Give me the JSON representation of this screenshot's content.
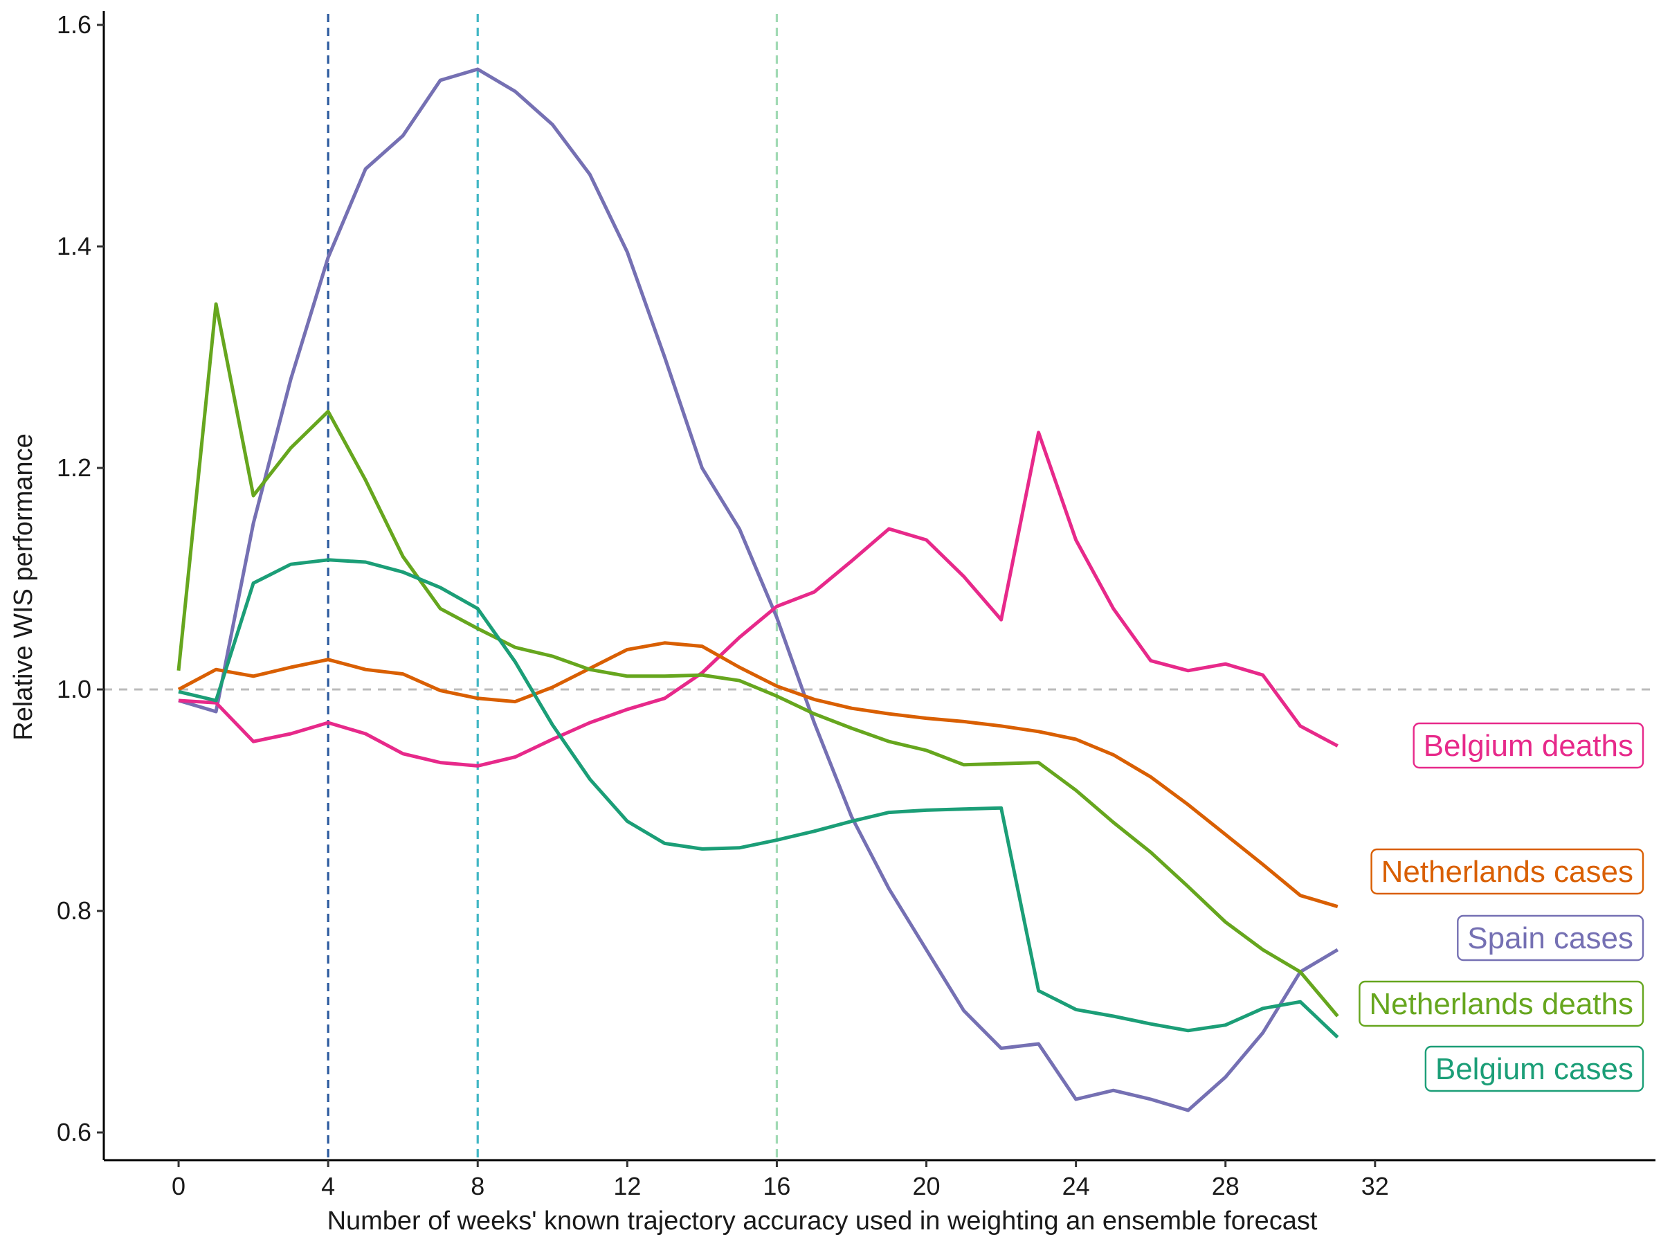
{
  "chart_data": {
    "type": "line",
    "title": "",
    "xlabel": "Number of weeks' known trajectory accuracy used in weighting an ensemble forecast",
    "ylabel": "Relative WIS performance",
    "xlim": [
      -2,
      39.5
    ],
    "ylim": [
      0.575,
      1.61
    ],
    "x_ticks": [
      0,
      4,
      8,
      12,
      16,
      20,
      24,
      28,
      32
    ],
    "y_ticks": [
      0.6,
      0.8,
      1.0,
      1.2,
      1.4,
      1.6
    ],
    "y_tick_labels": [
      "0.6",
      "0.8",
      "1.0",
      "1.2",
      "1.4",
      "1.6"
    ],
    "grid": false,
    "legend": "direct labels at right end of lines",
    "reference_lines": {
      "horizontal": {
        "y": 1.0,
        "color": "#bbbbbb",
        "style": "dashed"
      },
      "vertical": [
        {
          "x": 4,
          "color": "#2c5a9e",
          "style": "dashed"
        },
        {
          "x": 8,
          "color": "#41b6c4",
          "style": "dashed"
        },
        {
          "x": 16,
          "color": "#a1dab4",
          "style": "dashed"
        }
      ]
    },
    "x": [
      0,
      1,
      2,
      3,
      4,
      5,
      6,
      7,
      8,
      9,
      10,
      11,
      12,
      13,
      14,
      15,
      16,
      17,
      18,
      19,
      20,
      21,
      22,
      23,
      24,
      25,
      26,
      27,
      28,
      29,
      30,
      31
    ],
    "series": [
      {
        "name": "Spain cases",
        "color": "#7570b3",
        "values": [
          0.99,
          0.98,
          1.15,
          1.28,
          1.39,
          1.47,
          1.5,
          1.55,
          1.56,
          1.54,
          1.51,
          1.465,
          1.395,
          1.3,
          1.2,
          1.145,
          1.065,
          0.97,
          0.885,
          0.82,
          0.765,
          0.71,
          0.676,
          0.68,
          0.63,
          0.638,
          0.63,
          0.62,
          0.65,
          0.69,
          0.745,
          0.765
        ]
      },
      {
        "name": "Belgium deaths",
        "color": "#e7298a",
        "values": [
          0.99,
          0.988,
          0.953,
          0.96,
          0.97,
          0.96,
          0.942,
          0.934,
          0.931,
          0.939,
          0.955,
          0.97,
          0.982,
          0.992,
          1.015,
          1.047,
          1.075,
          1.088,
          1.116,
          1.145,
          1.135,
          1.102,
          1.063,
          1.232,
          1.135,
          1.073,
          1.026,
          1.017,
          1.023,
          1.013,
          0.967,
          0.949
        ]
      },
      {
        "name": "Netherlands cases",
        "color": "#d95f02",
        "values": [
          1.0,
          1.018,
          1.012,
          1.02,
          1.027,
          1.018,
          1.014,
          0.999,
          0.992,
          0.989,
          1.002,
          1.019,
          1.036,
          1.042,
          1.039,
          1.02,
          1.003,
          0.991,
          0.983,
          0.978,
          0.974,
          0.971,
          0.967,
          0.962,
          0.955,
          0.941,
          0.921,
          0.896,
          0.869,
          0.842,
          0.814,
          0.804
        ]
      },
      {
        "name": "Netherlands deaths",
        "color": "#66a61e",
        "values": [
          1.017,
          1.348,
          1.175,
          1.218,
          1.251,
          1.189,
          1.12,
          1.073,
          1.055,
          1.038,
          1.03,
          1.018,
          1.012,
          1.012,
          1.013,
          1.008,
          0.994,
          0.978,
          0.965,
          0.953,
          0.945,
          0.932,
          0.933,
          0.934,
          0.909,
          0.88,
          0.853,
          0.822,
          0.79,
          0.765,
          0.745,
          0.705
        ]
      },
      {
        "name": "Belgium cases",
        "color": "#1b9e77",
        "values": [
          0.998,
          0.99,
          1.096,
          1.113,
          1.117,
          1.115,
          1.106,
          1.092,
          1.073,
          1.025,
          0.968,
          0.919,
          0.881,
          0.861,
          0.856,
          0.857,
          0.864,
          0.872,
          0.881,
          0.889,
          0.891,
          0.892,
          0.893,
          0.728,
          0.711,
          0.705,
          0.698,
          0.692,
          0.697,
          0.712,
          0.718,
          0.686
        ]
      }
    ],
    "labels": [
      {
        "text": "Belgium deaths",
        "series": "Belgium deaths"
      },
      {
        "text": "Netherlands cases",
        "series": "Netherlands cases"
      },
      {
        "text": "Spain cases",
        "series": "Spain cases"
      },
      {
        "text": "Netherlands deaths",
        "series": "Netherlands deaths"
      },
      {
        "text": "Belgium cases",
        "series": "Belgium cases"
      }
    ]
  }
}
